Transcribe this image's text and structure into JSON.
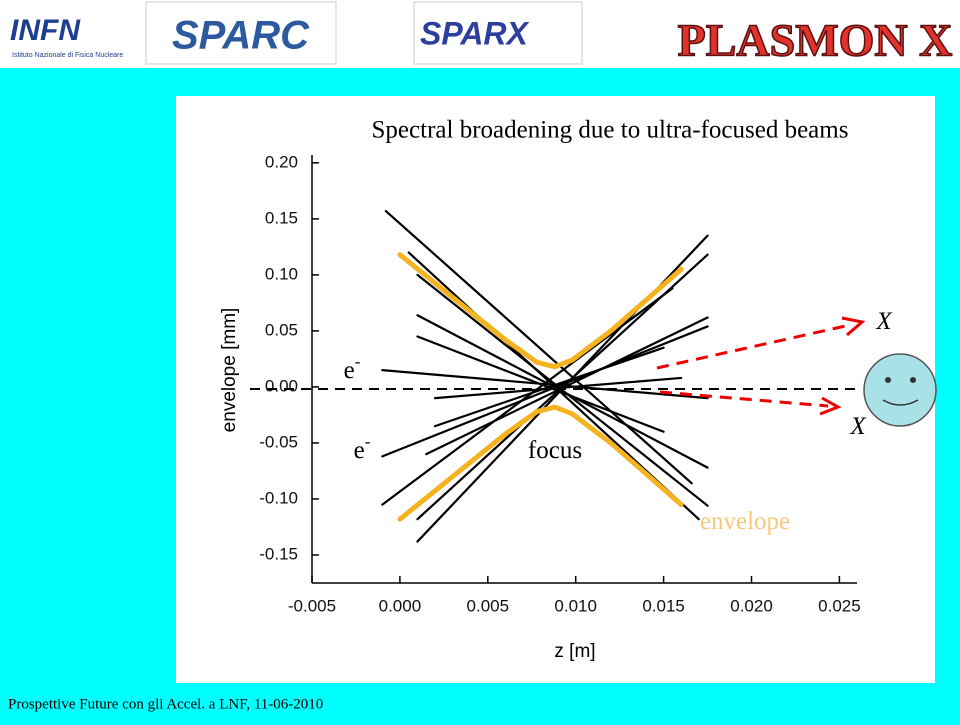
{
  "logos": [
    "INFN",
    "Istituto Nazionale di Fisica Nucleare",
    "SPARC",
    "SPARX",
    "PLASMON X"
  ],
  "footer": "Prospettive Future con gli Accel. a LNF,  11-06-2010",
  "chart_data": {
    "type": "line",
    "title": "Spectral broadening due to ultra-focused beams",
    "xlabel": "z [m]",
    "ylabel": "envelope [mm]",
    "xlim": [
      -0.005,
      0.026
    ],
    "ylim": [
      -0.175,
      0.207
    ],
    "xticks": [
      {
        "value": -0.005,
        "label": "-0.005"
      },
      {
        "value": 0,
        "label": "0.000"
      },
      {
        "value": 0.005,
        "label": "0.005"
      },
      {
        "value": 0.01,
        "label": "0.010"
      },
      {
        "value": 0.015,
        "label": "0.015"
      },
      {
        "value": 0.02,
        "label": "0.020"
      },
      {
        "value": 0.025,
        "label": "0.025"
      }
    ],
    "yticks": [
      {
        "value": -0.15,
        "label": "-0.15"
      },
      {
        "value": -0.1,
        "label": "-0.10"
      },
      {
        "value": -0.05,
        "label": "-0.05"
      },
      {
        "value": 0,
        "label": "0.00"
      },
      {
        "value": 0.05,
        "label": "0.05"
      },
      {
        "value": 0.1,
        "label": "0.10"
      },
      {
        "value": 0.15,
        "label": "0.15"
      },
      {
        "value": 0.2,
        "label": "0.20"
      }
    ],
    "series": [
      {
        "color": "#000000",
        "x": [
          -0.0008,
          0.0166
        ],
        "values": [
          0.157,
          -0.086
        ]
      },
      {
        "color": "#000000",
        "x": [
          0.001,
          0.0175
        ],
        "values": [
          0.1,
          -0.106
        ]
      },
      {
        "color": "#000000",
        "x": [
          0.001,
          0.0175
        ],
        "values": [
          0.064,
          -0.072
        ]
      },
      {
        "color": "#000000",
        "x": [
          -0.001,
          0.0175
        ],
        "values": [
          0.015,
          -0.01
        ]
      },
      {
        "color": "#000000",
        "x": [
          0.001,
          0.015
        ],
        "values": [
          0.045,
          -0.04
        ]
      },
      {
        "color": "#000000",
        "x": [
          -0.001,
          0.0155
        ],
        "values": [
          -0.105,
          0.088
        ]
      },
      {
        "color": "#000000",
        "x": [
          0.001,
          0.0175
        ],
        "values": [
          -0.138,
          0.135
        ]
      },
      {
        "color": "#000000",
        "x": [
          0.001,
          0.0175
        ],
        "values": [
          -0.118,
          0.118
        ]
      },
      {
        "color": "#000000",
        "x": [
          0.0015,
          0.0175
        ],
        "values": [
          -0.06,
          0.062
        ]
      },
      {
        "color": "#000000",
        "x": [
          -0.001,
          0.0175
        ],
        "values": [
          -0.062,
          0.054
        ]
      },
      {
        "color": "#000000",
        "x": [
          0.002,
          0.015
        ],
        "values": [
          -0.035,
          0.035
        ]
      },
      {
        "color": "#000000",
        "x": [
          0.0005,
          0.017
        ],
        "values": [
          0.12,
          -0.118
        ]
      },
      {
        "color": "#000000",
        "x": [
          0.002,
          0.016
        ],
        "values": [
          -0.01,
          0.008
        ]
      },
      {
        "color": "#f5b31f",
        "x": [
          0,
          0.003,
          0.006,
          0.0078,
          0.0088,
          0.0098,
          0.012,
          0.016
        ],
        "values": [
          0.118,
          0.08,
          0.042,
          0.022,
          0.018,
          0.024,
          0.05,
          0.105
        ]
      },
      {
        "color": "#f5b31f",
        "x": [
          0,
          0.003,
          0.006,
          0.0078,
          0.0088,
          0.0098,
          0.012,
          0.016
        ],
        "values": [
          -0.118,
          -0.08,
          -0.042,
          -0.022,
          -0.018,
          -0.024,
          -0.05,
          -0.105
        ]
      }
    ],
    "annotations": [
      {
        "text": "e",
        "sup": "-"
      },
      {
        "text": "e",
        "sup": "-"
      },
      {
        "text": "focus"
      },
      {
        "text": "envelope"
      },
      {
        "text": "X"
      },
      {
        "text": "X"
      }
    ]
  }
}
